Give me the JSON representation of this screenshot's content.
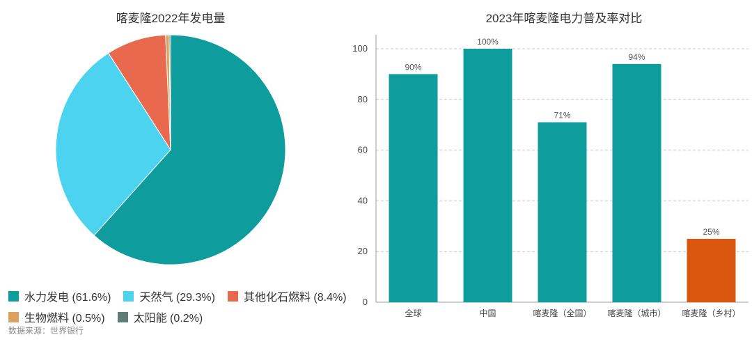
{
  "source_note": "数据来源：世界银行",
  "colors": {
    "teal": "#0f9c9c",
    "light_blue": "#4bd3f0",
    "coral": "#e8694d",
    "tan": "#dba15f",
    "slate": "#5f7c79",
    "orange": "#d9570f",
    "grid": "#c8c8c8"
  },
  "chart_data": [
    {
      "type": "pie",
      "title": "喀麦隆2022年发电量",
      "legend_position": "bottom",
      "slices": [
        {
          "label": "水力发电",
          "legend_text": "水力发电 (61.6%)",
          "value": 61.6,
          "color": "#0f9c9c"
        },
        {
          "label": "天然气",
          "legend_text": "天然气 (29.3%)",
          "value": 29.3,
          "color": "#4bd3f0"
        },
        {
          "label": "其他化石燃料",
          "legend_text": "其他化石燃料 (8.4%)",
          "value": 8.4,
          "color": "#e8694d"
        },
        {
          "label": "生物燃料",
          "legend_text": "生物燃料 (0.5%)",
          "value": 0.5,
          "color": "#dba15f"
        },
        {
          "label": "太阳能",
          "legend_text": "太阳能 (0.2%)",
          "value": 0.2,
          "color": "#5f7c79"
        }
      ]
    },
    {
      "type": "bar",
      "title": "2023年喀麦隆电力普及率对比",
      "categories": [
        "全球",
        "中国",
        "喀麦隆（全国）",
        "喀麦隆（城市）",
        "喀麦隆（乡村）"
      ],
      "values": [
        90,
        100,
        71,
        94,
        25
      ],
      "data_labels": [
        "90%",
        "100%",
        "71%",
        "94%",
        "25%"
      ],
      "bar_colors": [
        "#0f9c9c",
        "#0f9c9c",
        "#0f9c9c",
        "#0f9c9c",
        "#d9570f"
      ],
      "ylim": [
        0,
        100
      ],
      "yticks": [
        0,
        20,
        40,
        60,
        80,
        100
      ],
      "grid": true
    }
  ]
}
